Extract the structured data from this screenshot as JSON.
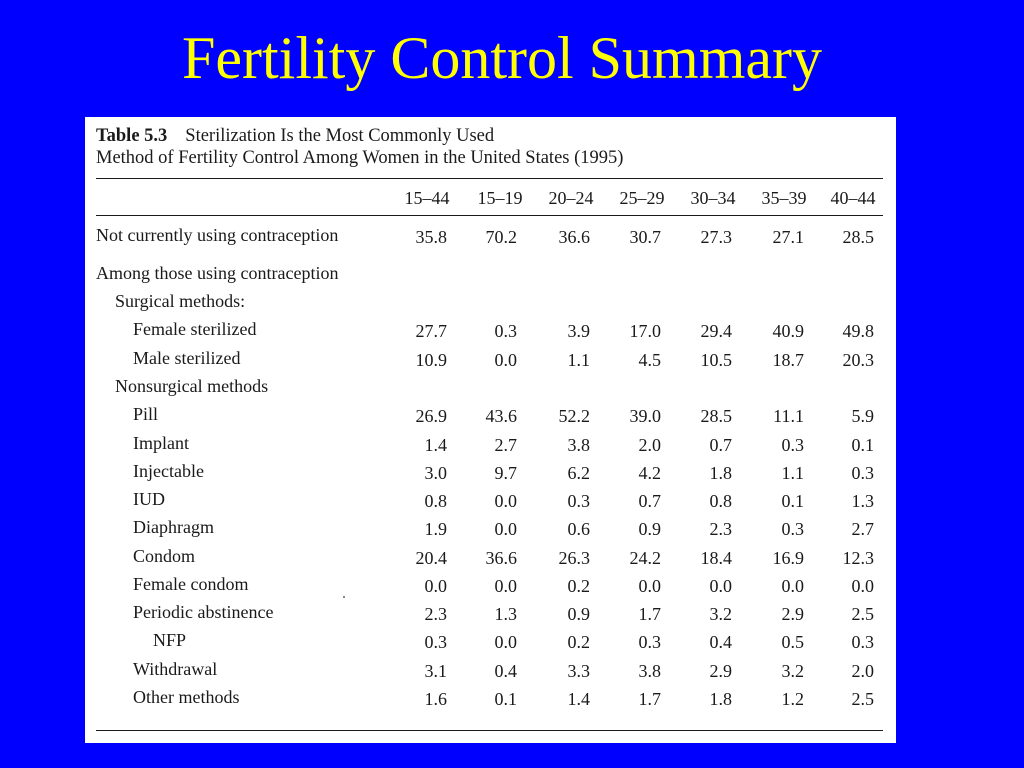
{
  "slide": {
    "title": "Fertility Control Summary",
    "colors": {
      "background": "#0000ff",
      "title": "#ffff00",
      "panel": "#ffffff"
    }
  },
  "table": {
    "caption_label": "Table 5.3",
    "caption_line1": "Sterilization Is the Most Commonly Used",
    "caption_line2": "Method of Fertility Control Among Women in the United States (1995)",
    "columns": [
      "15–44",
      "15–19",
      "20–24",
      "25–29",
      "30–34",
      "35–39",
      "40–44"
    ],
    "rows": [
      {
        "label": "Not currently using contraception",
        "values": [
          "35.8",
          "70.2",
          "36.6",
          "30.7",
          "27.3",
          "27.1",
          "28.5"
        ]
      },
      {
        "label": "Among those using contraception",
        "values": []
      },
      {
        "label": "Surgical methods:",
        "values": []
      },
      {
        "label": "Female sterilized",
        "values": [
          "27.7",
          "0.3",
          "3.9",
          "17.0",
          "29.4",
          "40.9",
          "49.8"
        ]
      },
      {
        "label": "Male sterilized",
        "values": [
          "10.9",
          "0.0",
          "1.1",
          "4.5",
          "10.5",
          "18.7",
          "20.3"
        ]
      },
      {
        "label": "Nonsurgical methods",
        "values": []
      },
      {
        "label": "Pill",
        "values": [
          "26.9",
          "43.6",
          "52.2",
          "39.0",
          "28.5",
          "11.1",
          "5.9"
        ]
      },
      {
        "label": "Implant",
        "values": [
          "1.4",
          "2.7",
          "3.8",
          "2.0",
          "0.7",
          "0.3",
          "0.1"
        ]
      },
      {
        "label": "Injectable",
        "values": [
          "3.0",
          "9.7",
          "6.2",
          "4.2",
          "1.8",
          "1.1",
          "0.3"
        ]
      },
      {
        "label": "IUD",
        "values": [
          "0.8",
          "0.0",
          "0.3",
          "0.7",
          "0.8",
          "0.1",
          "1.3"
        ]
      },
      {
        "label": "Diaphragm",
        "values": [
          "1.9",
          "0.0",
          "0.6",
          "0.9",
          "2.3",
          "0.3",
          "2.7"
        ]
      },
      {
        "label": "Condom",
        "values": [
          "20.4",
          "36.6",
          "26.3",
          "24.2",
          "18.4",
          "16.9",
          "12.3"
        ]
      },
      {
        "label": "Female condom",
        "values": [
          "0.0",
          "0.0",
          "0.2",
          "0.0",
          "0.0",
          "0.0",
          "0.0"
        ]
      },
      {
        "label": "Periodic abstinence",
        "values": [
          "2.3",
          "1.3",
          "0.9",
          "1.7",
          "3.2",
          "2.9",
          "2.5"
        ]
      },
      {
        "label": "NFP",
        "values": [
          "0.3",
          "0.0",
          "0.2",
          "0.3",
          "0.4",
          "0.5",
          "0.3"
        ]
      },
      {
        "label": "Withdrawal",
        "values": [
          "3.1",
          "0.4",
          "3.3",
          "3.8",
          "2.9",
          "3.2",
          "2.0"
        ]
      },
      {
        "label": "Other methods",
        "values": [
          "1.6",
          "0.1",
          "1.4",
          "1.7",
          "1.8",
          "1.2",
          "2.5"
        ]
      }
    ]
  }
}
